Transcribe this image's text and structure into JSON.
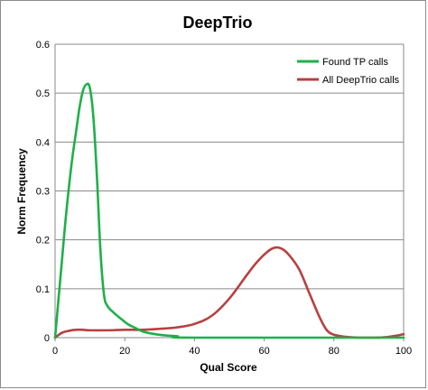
{
  "chart_data": {
    "type": "line",
    "title": "DeepTrio",
    "xlabel": "Qual Score",
    "ylabel": "Norm Frequency",
    "xlim": [
      0,
      100
    ],
    "ylim": [
      0,
      0.6
    ],
    "x_ticks": [
      "0",
      "20",
      "40",
      "60",
      "80",
      "100"
    ],
    "y_ticks": [
      "0",
      "0.1",
      "0.2",
      "0.3",
      "0.4",
      "0.5",
      "0.6"
    ],
    "grid": "horizontal",
    "legend_position": "top-right",
    "series": [
      {
        "name": "Found TP calls",
        "color": "#1eb04a",
        "points": [
          [
            0,
            0.0
          ],
          [
            1,
            0.08
          ],
          [
            2,
            0.16
          ],
          [
            3,
            0.24
          ],
          [
            4,
            0.31
          ],
          [
            5,
            0.37
          ],
          [
            6,
            0.42
          ],
          [
            7,
            0.47
          ],
          [
            8,
            0.505
          ],
          [
            9,
            0.518
          ],
          [
            10,
            0.51
          ],
          [
            11,
            0.45
          ],
          [
            12,
            0.33
          ],
          [
            13,
            0.18
          ],
          [
            14,
            0.09
          ],
          [
            15,
            0.065
          ],
          [
            17,
            0.05
          ],
          [
            19,
            0.038
          ],
          [
            21,
            0.027
          ],
          [
            23,
            0.02
          ],
          [
            25,
            0.013
          ],
          [
            28,
            0.008
          ],
          [
            31,
            0.005
          ],
          [
            35,
            0.003
          ],
          [
            40,
            0.0
          ],
          [
            100,
            0.0
          ]
        ]
      },
      {
        "name": "All DeepTrio calls",
        "color": "#b84040",
        "points": [
          [
            0,
            0.0
          ],
          [
            2,
            0.01
          ],
          [
            4,
            0.014
          ],
          [
            6,
            0.016
          ],
          [
            8,
            0.016
          ],
          [
            10,
            0.015
          ],
          [
            15,
            0.015
          ],
          [
            20,
            0.016
          ],
          [
            25,
            0.016
          ],
          [
            30,
            0.018
          ],
          [
            35,
            0.021
          ],
          [
            40,
            0.028
          ],
          [
            45,
            0.045
          ],
          [
            50,
            0.08
          ],
          [
            55,
            0.128
          ],
          [
            58,
            0.155
          ],
          [
            61,
            0.176
          ],
          [
            63,
            0.184
          ],
          [
            65,
            0.182
          ],
          [
            67,
            0.17
          ],
          [
            70,
            0.14
          ],
          [
            73,
            0.09
          ],
          [
            76,
            0.04
          ],
          [
            78,
            0.015
          ],
          [
            80,
            0.006
          ],
          [
            83,
            0.002
          ],
          [
            87,
            0.0
          ],
          [
            92,
            0.0
          ],
          [
            95,
            0.001
          ],
          [
            98,
            0.004
          ],
          [
            100,
            0.007
          ]
        ]
      }
    ]
  }
}
